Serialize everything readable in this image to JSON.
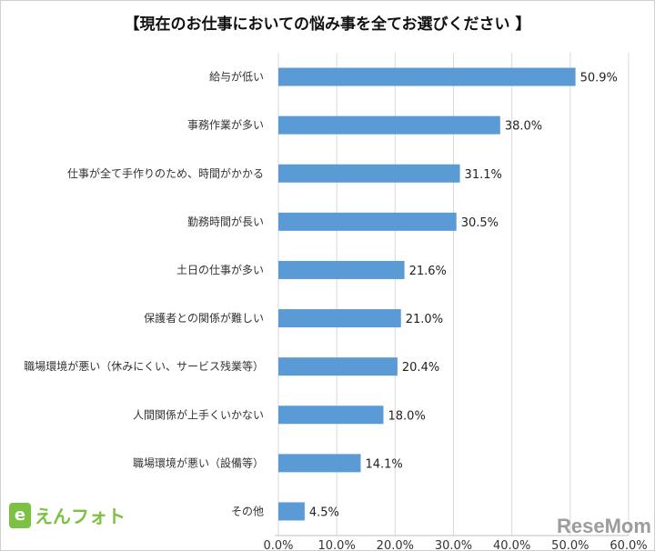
{
  "chart_data": {
    "type": "bar",
    "orientation": "horizontal",
    "title": "【現在のお仕事においての悩み事を全てお選びください 】",
    "categories": [
      "給与が低い",
      "事務作業が多い",
      "仕事が全て手作りのため、時間がかかる",
      "勤務時間が長い",
      "土日の仕事が多い",
      "保護者との関係が難しい",
      "職場環境が悪い（休みにくい、サービス残業等）",
      "人間関係が上手くいかない",
      "職場環境が悪い（設備等）",
      "その他"
    ],
    "values": [
      50.9,
      38.0,
      31.1,
      30.5,
      21.6,
      21.0,
      20.4,
      18.0,
      14.1,
      4.5
    ],
    "data_labels": [
      "50.9%",
      "38.0%",
      "31.1%",
      "30.5%",
      "21.6%",
      "21.0%",
      "20.4%",
      "18.0%",
      "14.1%",
      "4.5%"
    ],
    "xlim": [
      0,
      60
    ],
    "x_ticks": [
      "0.0%",
      "10.0%",
      "20.0%",
      "30.0%",
      "40.0%",
      "50.0%",
      "60.0%"
    ],
    "grid": true,
    "bar_color": "#5b9bd5",
    "xlabel": "",
    "ylabel": ""
  },
  "logos": {
    "left": "えんフォト",
    "left_mark": "e",
    "right": "ReseMom"
  }
}
